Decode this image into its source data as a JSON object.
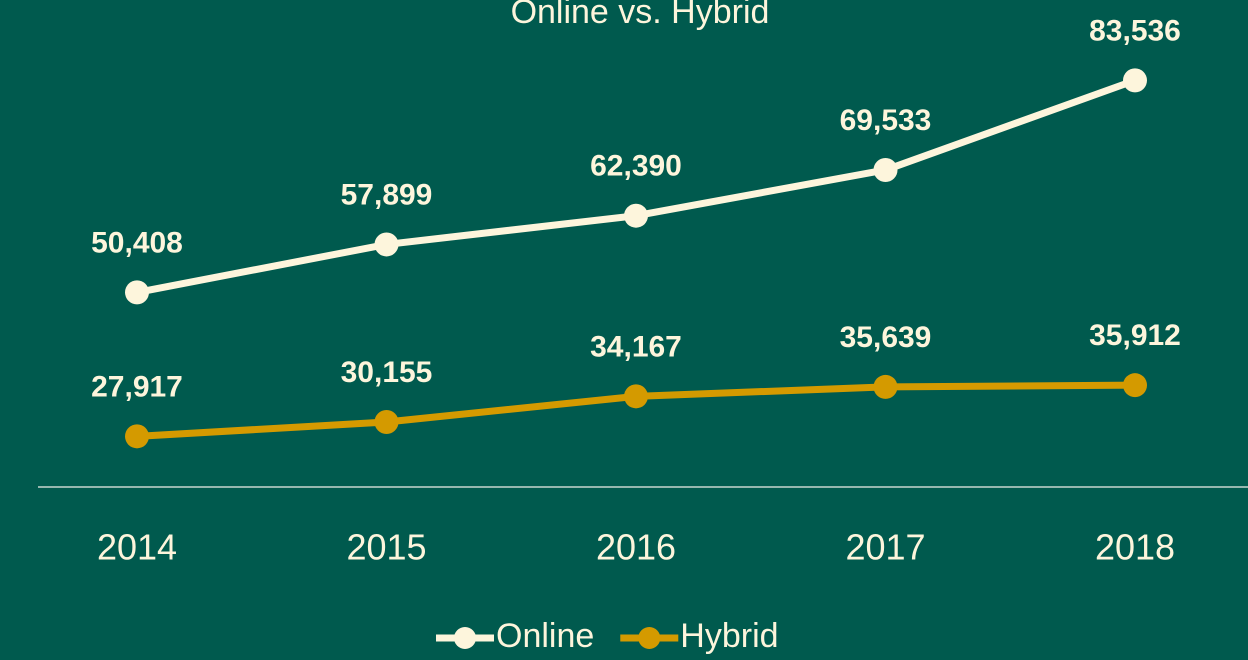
{
  "chart_data": {
    "type": "line",
    "title": "Online vs. Hybrid",
    "categories": [
      "2014",
      "2015",
      "2016",
      "2017",
      "2018"
    ],
    "series": [
      {
        "name": "Online",
        "color": "#fdf5dc",
        "values": [
          50408,
          57899,
          62390,
          69533,
          83536
        ],
        "value_labels": [
          "50,408",
          "57,899",
          "62,390",
          "69,533",
          "83,536"
        ]
      },
      {
        "name": "Hybrid",
        "color": "#d49a00",
        "values": [
          27917,
          30155,
          34167,
          35639,
          35912
        ],
        "value_labels": [
          "27,917",
          "30,155",
          "34,167",
          "35,639",
          "35,912"
        ]
      }
    ],
    "ylim": [
      20000,
      90000
    ],
    "legend": "bottom"
  }
}
